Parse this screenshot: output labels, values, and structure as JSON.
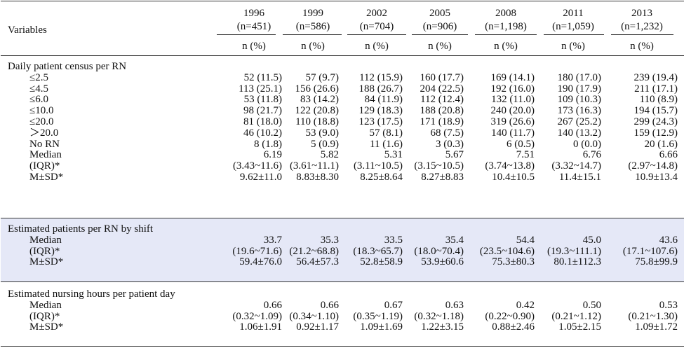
{
  "header": {
    "variables_label": "Variables",
    "years": [
      {
        "year": "1996",
        "n": "(n=451)"
      },
      {
        "year": "1999",
        "n": "(n=586)"
      },
      {
        "year": "2002",
        "n": "(n=704)"
      },
      {
        "year": "2005",
        "n": "(n=906)"
      },
      {
        "year": "2008",
        "n": "(n=1,198)"
      },
      {
        "year": "2011",
        "n": "(n=1,059)"
      },
      {
        "year": "2013",
        "n": "(n=1,232)"
      }
    ],
    "subheader": "n (%)"
  },
  "sections": [
    {
      "title": "Daily patient census per RN",
      "shaded": false,
      "rows": [
        {
          "label": "≤2.5",
          "values": [
            "52 (11.5)",
            "57 (9.7)",
            "112 (15.9)",
            "160 (17.7)",
            "169 (14.1)",
            "180 (17.0)",
            "239 (19.4)"
          ]
        },
        {
          "label": "≤4.5",
          "values": [
            "113 (25.1)",
            "156 (26.6)",
            "188 (26.7)",
            "204 (22.5)",
            "192 (16.0)",
            "190 (17.9)",
            "211 (17.1)"
          ]
        },
        {
          "label": "≤6.0",
          "values": [
            "53 (11.8)",
            "83 (14.2)",
            "84 (11.9)",
            "112 (12.4)",
            "132 (11.0)",
            "109 (10.3)",
            "110 (8.9)"
          ]
        },
        {
          "label": "≤10.0",
          "values": [
            "98 (21.7)",
            "122 (20.8)",
            "129 (18.3)",
            "188 (20.8)",
            "240 (20.0)",
            "173 (16.3)",
            "194 (15.7)"
          ]
        },
        {
          "label": "≤20.0",
          "values": [
            "81 (18.0)",
            "110 (18.8)",
            "123 (17.5)",
            "171 (18.9)",
            "319 (26.6)",
            "267 (25.2)",
            "299 (24.3)"
          ]
        },
        {
          "label": "＞20.0",
          "values": [
            "46 (10.2)",
            "53 (9.0)",
            "57 (8.1)",
            "68 (7.5)",
            "140 (11.7)",
            "140 (13.2)",
            "159 (12.9)"
          ]
        },
        {
          "label": "No RN",
          "values": [
            "8 (1.8)",
            "5 (0.9)",
            "11 (1.6)",
            "3 (0.3)",
            "6 (0.5)",
            "0 (0.0)",
            "20 (1.6)"
          ]
        },
        {
          "label": "Median",
          "values": [
            "6.19",
            "5.82",
            "5.31",
            "5.67",
            "7.51",
            "6.76",
            "6.66"
          ]
        },
        {
          "label": "(IQR)*",
          "values": [
            "(3.43~11.6)",
            "(3.61~11.1)",
            "(3.11~10.5)",
            "(3.15~10.5)",
            "(3.74~13.8)",
            "(3.32~14.7)",
            "(2.97~14.8)"
          ]
        },
        {
          "label": "M±SD*",
          "values": [
            "9.62±11.0",
            "8.83±8.30",
            "8.25±8.64",
            "8.27±8.83",
            "10.4±10.5",
            "11.4±15.1",
            "10.9±13.4"
          ]
        }
      ]
    },
    {
      "title": "Estimated patients per RN by shift",
      "shaded": true,
      "rows": [
        {
          "label": "Median",
          "values": [
            "33.7",
            "35.3",
            "33.5",
            "35.4",
            "54.4",
            "45.0",
            "43.6"
          ]
        },
        {
          "label": "(IQR)*",
          "values": [
            "(19.6~71.6)",
            "(21.2~68.8)",
            "(18.3~65.7)",
            "(18.0~70.4)",
            "(23.5~104.6)",
            "(19.3~111.1)",
            "(17.1~107.6)"
          ]
        },
        {
          "label": "M±SD*",
          "values": [
            "59.4±76.0",
            "56.4±57.3",
            "52.8±58.9",
            "53.9±60.6",
            "75.3±80.3",
            "80.1±112.3",
            "75.8±99.9"
          ]
        }
      ]
    },
    {
      "title": "Estimated nursing hours per patient day",
      "shaded": false,
      "rows": [
        {
          "label": "Median",
          "values": [
            "0.66",
            "0.66",
            "0.67",
            "0.63",
            "0.42",
            "0.50",
            "0.53"
          ]
        },
        {
          "label": "(IQR)*",
          "values": [
            "(0.32~1.09)",
            "(0.34~1.10)",
            "(0.35~1.19)",
            "(0.32~1.18)",
            "(0.22~0.90)",
            "(0.21~1.12)",
            "(0.21~1.30)"
          ]
        },
        {
          "label": "M±SD*",
          "values": [
            "1.06±1.91",
            "0.92±1.17",
            "1.09±1.69",
            "1.22±3.15",
            "0.88±2.46",
            "1.05±2.15",
            "1.09±1.72"
          ]
        }
      ]
    }
  ],
  "colors": {
    "shaded_band": "#e5e8f7",
    "rule": "#333333"
  }
}
